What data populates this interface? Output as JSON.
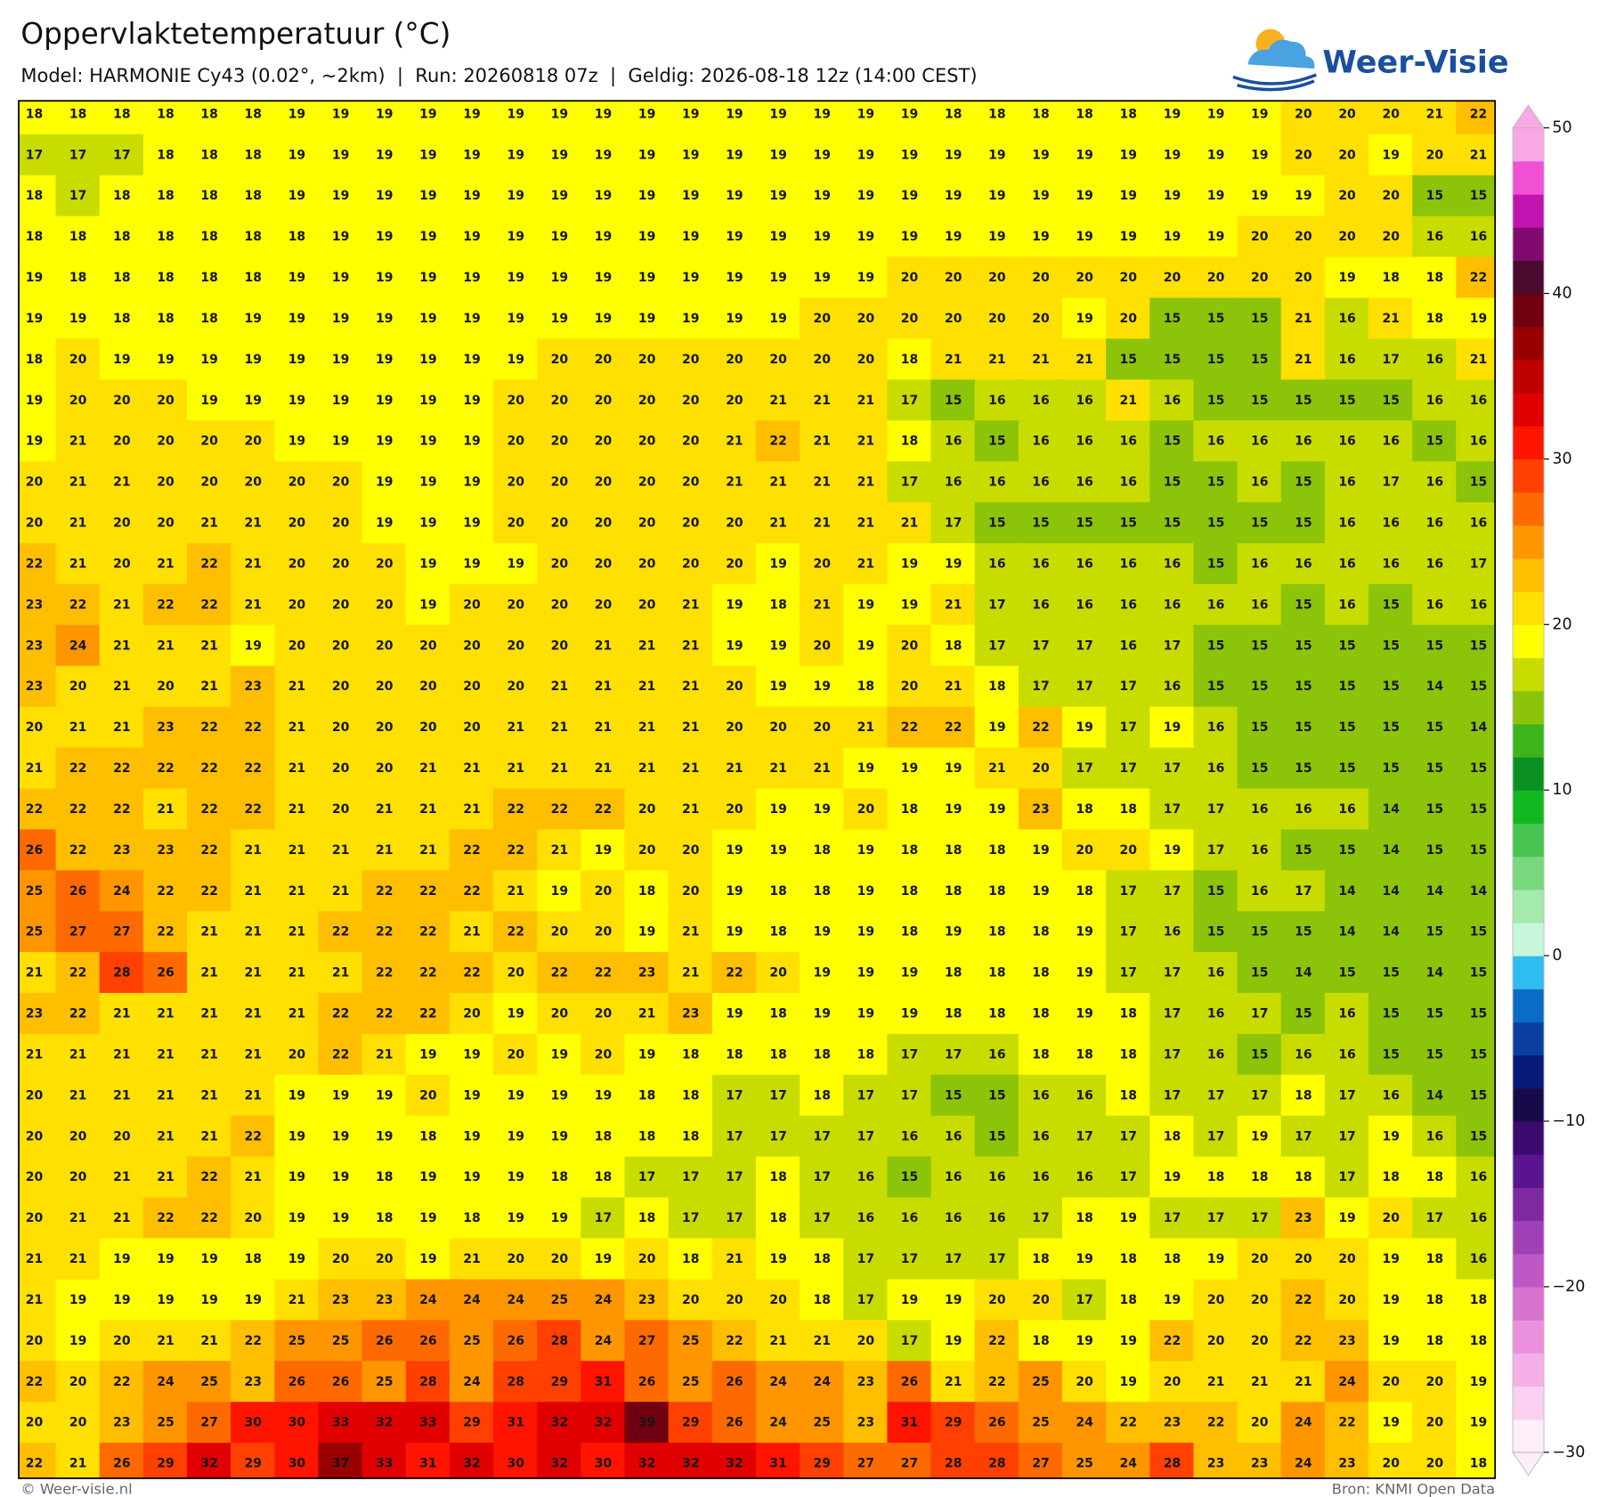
{
  "header": {
    "title": "Oppervlaktetemperatuur (°C)",
    "subtitle": "Model: HARMONIE Cy43 (0.02°, ~2km)  |  Run: 20260818 07z  |  Geldig: 2026-08-18 12z (14:00 CEST)",
    "logo": "Weer-Visie"
  },
  "footer": {
    "left": "© Weer-visie.nl",
    "right": "Bron: KNMI Open Data"
  },
  "grid": {
    "rows": [
      [
        18,
        18,
        18,
        18,
        18,
        18,
        19,
        19,
        19,
        19,
        19,
        19,
        19,
        19,
        19,
        19,
        19,
        19,
        19,
        19,
        19,
        18,
        18,
        18,
        18,
        18,
        19,
        19,
        19,
        20,
        20,
        20,
        21,
        22
      ],
      [
        17,
        17,
        17,
        18,
        18,
        18,
        19,
        19,
        19,
        19,
        19,
        19,
        19,
        19,
        19,
        19,
        19,
        19,
        19,
        19,
        19,
        19,
        19,
        19,
        19,
        19,
        19,
        19,
        19,
        20,
        20,
        19,
        20,
        21
      ],
      [
        18,
        17,
        18,
        18,
        18,
        18,
        19,
        19,
        19,
        19,
        19,
        19,
        19,
        19,
        19,
        19,
        19,
        19,
        19,
        19,
        19,
        19,
        19,
        19,
        19,
        19,
        19,
        19,
        19,
        19,
        20,
        20,
        15,
        15
      ],
      [
        18,
        18,
        18,
        18,
        18,
        18,
        18,
        19,
        19,
        19,
        19,
        19,
        19,
        19,
        19,
        19,
        19,
        19,
        19,
        19,
        19,
        19,
        19,
        19,
        19,
        19,
        19,
        19,
        20,
        20,
        20,
        20,
        16,
        16
      ],
      [
        19,
        18,
        18,
        18,
        18,
        18,
        19,
        19,
        19,
        19,
        19,
        19,
        19,
        19,
        19,
        19,
        19,
        19,
        19,
        19,
        20,
        20,
        20,
        20,
        20,
        20,
        20,
        20,
        20,
        20,
        19,
        18,
        18,
        22
      ],
      [
        19,
        19,
        18,
        18,
        18,
        19,
        19,
        19,
        19,
        19,
        19,
        19,
        19,
        19,
        19,
        19,
        19,
        19,
        20,
        20,
        20,
        20,
        20,
        20,
        19,
        20,
        15,
        15,
        15,
        21,
        16,
        21,
        18,
        19
      ],
      [
        18,
        20,
        19,
        19,
        19,
        19,
        19,
        19,
        19,
        19,
        19,
        19,
        20,
        20,
        20,
        20,
        20,
        20,
        20,
        20,
        18,
        21,
        21,
        21,
        21,
        15,
        15,
        15,
        15,
        21,
        16,
        17,
        16,
        21
      ],
      [
        19,
        20,
        20,
        20,
        19,
        19,
        19,
        19,
        19,
        19,
        19,
        20,
        20,
        20,
        20,
        20,
        20,
        21,
        21,
        21,
        17,
        15,
        16,
        16,
        16,
        21,
        16,
        15,
        15,
        15,
        15,
        15,
        16,
        16
      ],
      [
        19,
        21,
        20,
        20,
        20,
        20,
        19,
        19,
        19,
        19,
        19,
        20,
        20,
        20,
        20,
        20,
        21,
        22,
        21,
        21,
        18,
        16,
        15,
        16,
        16,
        16,
        15,
        16,
        16,
        16,
        16,
        16,
        15,
        16
      ],
      [
        20,
        21,
        21,
        20,
        20,
        20,
        20,
        20,
        19,
        19,
        19,
        20,
        20,
        20,
        20,
        20,
        21,
        21,
        21,
        21,
        17,
        16,
        16,
        16,
        16,
        16,
        15,
        15,
        16,
        15,
        16,
        17,
        16,
        15
      ],
      [
        20,
        21,
        20,
        20,
        21,
        21,
        20,
        20,
        19,
        19,
        19,
        20,
        20,
        20,
        20,
        20,
        20,
        21,
        21,
        21,
        21,
        17,
        15,
        15,
        15,
        15,
        15,
        15,
        15,
        15,
        16,
        16,
        16,
        16
      ],
      [
        22,
        21,
        20,
        21,
        22,
        21,
        20,
        20,
        20,
        19,
        19,
        19,
        20,
        20,
        20,
        20,
        20,
        19,
        20,
        21,
        19,
        19,
        16,
        16,
        16,
        16,
        16,
        15,
        16,
        16,
        16,
        16,
        16,
        17
      ],
      [
        23,
        22,
        21,
        22,
        22,
        21,
        20,
        20,
        20,
        19,
        20,
        20,
        20,
        20,
        20,
        21,
        19,
        18,
        21,
        19,
        19,
        21,
        17,
        16,
        16,
        16,
        16,
        16,
        16,
        15,
        16,
        15,
        16,
        16
      ],
      [
        23,
        24,
        21,
        21,
        21,
        19,
        20,
        20,
        20,
        20,
        20,
        20,
        20,
        21,
        21,
        21,
        19,
        19,
        20,
        19,
        20,
        18,
        17,
        17,
        17,
        16,
        17,
        15,
        15,
        15,
        15,
        15,
        15,
        15
      ],
      [
        23,
        20,
        21,
        20,
        21,
        23,
        21,
        20,
        20,
        20,
        20,
        20,
        21,
        21,
        21,
        21,
        20,
        19,
        19,
        18,
        20,
        21,
        18,
        17,
        17,
        17,
        16,
        15,
        15,
        15,
        15,
        15,
        14,
        15
      ],
      [
        20,
        21,
        21,
        23,
        22,
        22,
        21,
        20,
        20,
        20,
        20,
        21,
        21,
        21,
        21,
        21,
        20,
        20,
        20,
        21,
        22,
        22,
        19,
        22,
        19,
        17,
        19,
        16,
        15,
        15,
        15,
        15,
        15,
        14
      ],
      [
        21,
        22,
        22,
        22,
        22,
        22,
        21,
        20,
        20,
        21,
        21,
        21,
        21,
        21,
        21,
        21,
        21,
        21,
        21,
        19,
        19,
        19,
        21,
        20,
        17,
        17,
        17,
        16,
        15,
        15,
        15,
        15,
        15,
        15
      ],
      [
        22,
        22,
        22,
        21,
        22,
        22,
        21,
        20,
        21,
        21,
        21,
        22,
        22,
        22,
        20,
        21,
        20,
        19,
        19,
        20,
        18,
        19,
        19,
        23,
        18,
        18,
        17,
        17,
        16,
        16,
        16,
        14,
        15,
        15
      ],
      [
        26,
        22,
        23,
        23,
        22,
        21,
        21,
        21,
        21,
        21,
        22,
        22,
        21,
        19,
        20,
        20,
        19,
        19,
        18,
        19,
        18,
        18,
        18,
        19,
        20,
        20,
        19,
        17,
        16,
        15,
        15,
        14,
        15,
        15
      ],
      [
        25,
        26,
        24,
        22,
        22,
        21,
        21,
        21,
        22,
        22,
        22,
        21,
        19,
        20,
        18,
        20,
        19,
        18,
        18,
        19,
        18,
        18,
        18,
        19,
        18,
        17,
        17,
        15,
        16,
        17,
        14,
        14,
        14,
        14
      ],
      [
        25,
        27,
        27,
        22,
        21,
        21,
        21,
        22,
        22,
        22,
        21,
        22,
        20,
        20,
        19,
        21,
        19,
        18,
        19,
        19,
        18,
        19,
        18,
        18,
        19,
        17,
        16,
        15,
        15,
        15,
        14,
        14,
        15,
        15
      ],
      [
        21,
        22,
        28,
        26,
        21,
        21,
        21,
        21,
        22,
        22,
        22,
        20,
        22,
        22,
        23,
        21,
        22,
        20,
        19,
        19,
        19,
        18,
        18,
        18,
        19,
        17,
        17,
        16,
        15,
        14,
        15,
        15,
        14,
        15
      ],
      [
        23,
        22,
        21,
        21,
        21,
        21,
        21,
        22,
        22,
        22,
        20,
        19,
        20,
        20,
        21,
        23,
        19,
        18,
        19,
        19,
        19,
        18,
        18,
        18,
        19,
        18,
        17,
        16,
        17,
        15,
        16,
        15,
        15,
        15
      ],
      [
        21,
        21,
        21,
        21,
        21,
        21,
        20,
        22,
        21,
        19,
        19,
        20,
        19,
        20,
        19,
        18,
        18,
        18,
        18,
        18,
        17,
        17,
        16,
        18,
        18,
        18,
        17,
        16,
        15,
        16,
        16,
        15,
        15,
        15
      ],
      [
        20,
        21,
        21,
        21,
        21,
        21,
        19,
        19,
        19,
        20,
        19,
        19,
        19,
        19,
        18,
        18,
        17,
        17,
        18,
        17,
        17,
        15,
        15,
        16,
        16,
        18,
        17,
        17,
        17,
        18,
        17,
        16,
        14,
        15
      ],
      [
        20,
        20,
        20,
        21,
        21,
        22,
        19,
        19,
        19,
        18,
        19,
        19,
        19,
        18,
        18,
        18,
        17,
        17,
        17,
        17,
        16,
        16,
        15,
        16,
        17,
        17,
        18,
        17,
        19,
        17,
        17,
        19,
        16,
        15
      ],
      [
        20,
        20,
        21,
        21,
        22,
        21,
        19,
        19,
        18,
        19,
        19,
        19,
        18,
        18,
        17,
        17,
        17,
        18,
        17,
        16,
        15,
        16,
        16,
        16,
        16,
        17,
        19,
        18,
        18,
        18,
        17,
        18,
        18,
        16
      ],
      [
        20,
        21,
        21,
        22,
        22,
        20,
        19,
        19,
        18,
        19,
        18,
        19,
        19,
        17,
        18,
        17,
        17,
        18,
        17,
        16,
        16,
        16,
        16,
        17,
        18,
        19,
        17,
        17,
        17,
        23,
        19,
        20,
        17,
        16
      ],
      [
        21,
        21,
        19,
        19,
        19,
        18,
        19,
        20,
        20,
        19,
        21,
        20,
        20,
        19,
        20,
        18,
        21,
        19,
        18,
        17,
        17,
        17,
        17,
        18,
        19,
        18,
        18,
        19,
        20,
        20,
        20,
        19,
        18,
        16
      ],
      [
        21,
        19,
        19,
        19,
        19,
        19,
        21,
        23,
        23,
        24,
        24,
        24,
        25,
        24,
        23,
        20,
        20,
        20,
        18,
        17,
        19,
        19,
        20,
        20,
        17,
        18,
        19,
        20,
        20,
        22,
        20,
        19,
        18,
        18
      ],
      [
        20,
        19,
        20,
        21,
        21,
        22,
        25,
        25,
        26,
        26,
        25,
        26,
        28,
        24,
        27,
        25,
        22,
        21,
        21,
        20,
        17,
        19,
        22,
        18,
        19,
        19,
        22,
        20,
        20,
        22,
        23,
        19,
        18,
        18
      ],
      [
        22,
        20,
        22,
        24,
        25,
        23,
        26,
        26,
        25,
        28,
        24,
        28,
        29,
        31,
        26,
        25,
        26,
        24,
        24,
        23,
        26,
        21,
        22,
        25,
        20,
        19,
        20,
        21,
        21,
        21,
        24,
        20,
        20,
        19
      ],
      [
        20,
        20,
        23,
        25,
        27,
        30,
        30,
        33,
        32,
        33,
        29,
        31,
        32,
        32,
        39,
        29,
        26,
        24,
        25,
        23,
        31,
        29,
        26,
        25,
        24,
        22,
        23,
        22,
        20,
        24,
        22,
        19,
        20,
        19
      ],
      [
        22,
        21,
        26,
        29,
        32,
        29,
        30,
        37,
        33,
        31,
        32,
        30,
        32,
        30,
        32,
        32,
        32,
        31,
        29,
        27,
        27,
        28,
        28,
        27,
        25,
        24,
        28,
        23,
        23,
        24,
        23,
        20,
        20,
        18
      ]
    ]
  },
  "colorbar": {
    "lim": [
      -30,
      50
    ],
    "ticks": [
      {
        "value": -30,
        "label": "−30"
      },
      {
        "value": -20,
        "label": "−20"
      },
      {
        "value": -10,
        "label": "−10"
      },
      0,
      10,
      20,
      30,
      40,
      50
    ],
    "colors": [
      "#fdeefa",
      "#fad0f0",
      "#f5b0e8",
      "#ea90dc",
      "#d873d0",
      "#bf58c4",
      "#a040b6",
      "#7e28a2",
      "#5a1490",
      "#3a0a6e",
      "#180a48",
      "#0a1a78",
      "#0a3ea0",
      "#0a6cc4",
      "#2fbcf0",
      "#c8f6dc",
      "#a4eaaa",
      "#78d87e",
      "#48c450",
      "#10b820",
      "#0a9020",
      "#3cb41c",
      "#8cc40a",
      "#c8dc00",
      "#ffff00",
      "#ffe000",
      "#ffbe00",
      "#ff9600",
      "#ff6a00",
      "#ff4000",
      "#ff1400",
      "#e00000",
      "#c00000",
      "#980000",
      "#700010",
      "#4a0a30",
      "#800a70",
      "#c014b0",
      "#f050d4",
      "#f8a8e4"
    ]
  }
}
